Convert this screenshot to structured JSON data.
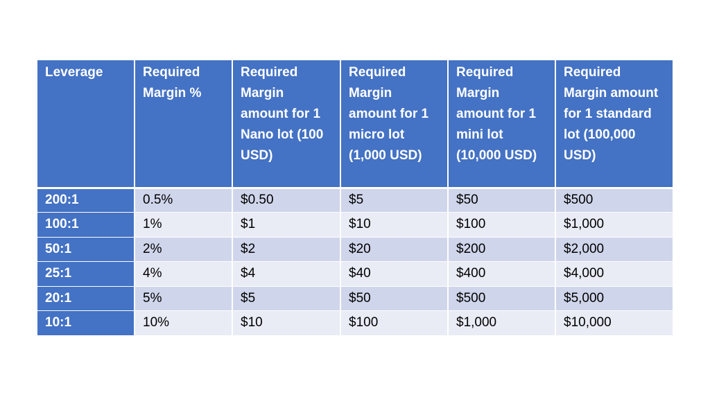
{
  "table": {
    "headers": [
      "Leverage",
      "Required Margin %",
      "Required Margin amount for 1 Nano lot (100 USD)",
      "Required Margin amount for 1 micro lot (1,000 USD)",
      "Required Margin amount for 1 mini lot (10,000 USD)",
      "Required Margin amount for 1 standard lot (100,000 USD)"
    ],
    "rows": [
      [
        "200:1",
        "0.5%",
        "$0.50",
        "$5",
        "$50",
        "$500"
      ],
      [
        "100:1",
        "1%",
        "$1",
        "$10",
        "$100",
        "$1,000"
      ],
      [
        "50:1",
        "2%",
        "$2",
        "$20",
        "$200",
        "$2,000"
      ],
      [
        "25:1",
        "4%",
        "$4",
        "$40",
        "$400",
        "$4,000"
      ],
      [
        "20:1",
        "5%",
        "$5",
        "$50",
        "$500",
        "$5,000"
      ],
      [
        "10:1",
        "10%",
        "$10",
        "$100",
        "$1,000",
        "$10,000"
      ]
    ]
  },
  "colors": {
    "header_bg": "#4472c4",
    "row_odd": "#cfd5ea",
    "row_even": "#e9ebf5",
    "header_text": "#ffffff"
  }
}
